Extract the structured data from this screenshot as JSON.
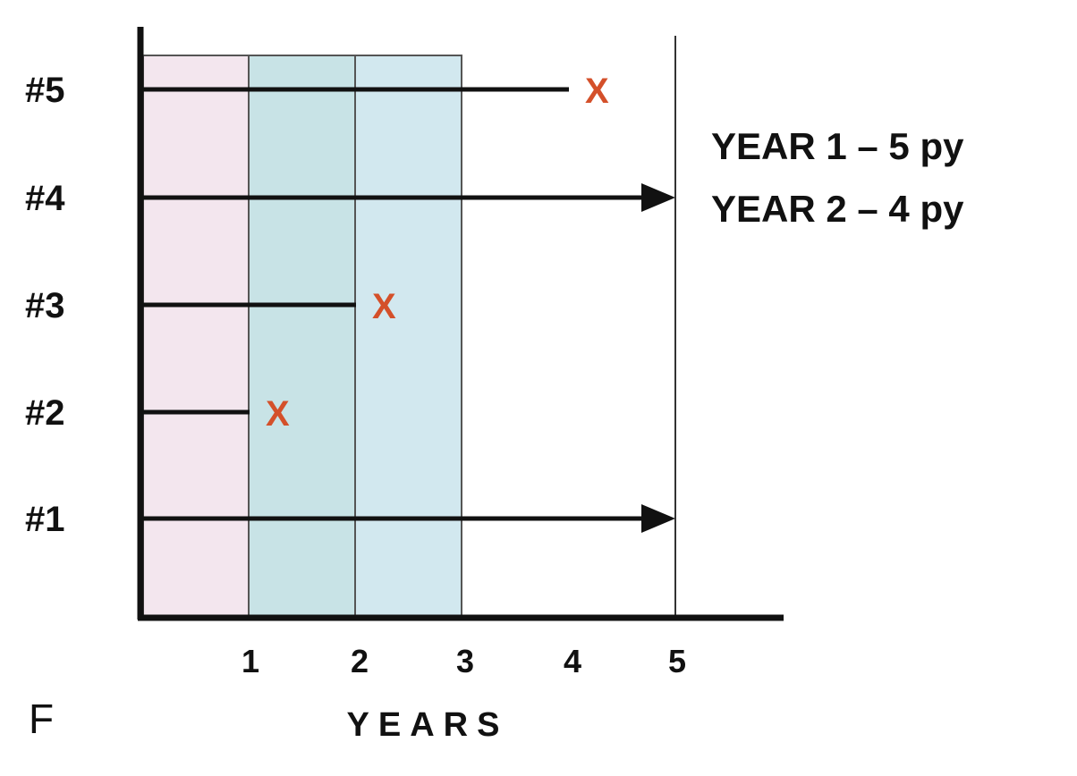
{
  "figure": {
    "panel_label": "F",
    "x_axis_label": "YEARS",
    "x_ticks": [
      "1",
      "2",
      "3",
      "4",
      "5"
    ],
    "annotations": [
      "YEAR 1 – 5 py",
      "YEAR 2 – 4 py"
    ],
    "colors": {
      "year1_band": "#f3e6ee",
      "year2_band": "#c8e3e6",
      "year3_band": "#d2e8ef",
      "event_marker": "#d4502a",
      "line": "#111111"
    }
  },
  "subjects": [
    {
      "label": "#1",
      "end_year": 5,
      "outcome": "arrow",
      "marker": ""
    },
    {
      "label": "#2",
      "end_year": 1,
      "outcome": "event",
      "marker": "X"
    },
    {
      "label": "#3",
      "end_year": 2,
      "outcome": "event",
      "marker": "X"
    },
    {
      "label": "#4",
      "end_year": 5,
      "outcome": "arrow",
      "marker": ""
    },
    {
      "label": "#5",
      "end_year": 4,
      "outcome": "event",
      "marker": "X"
    }
  ]
}
